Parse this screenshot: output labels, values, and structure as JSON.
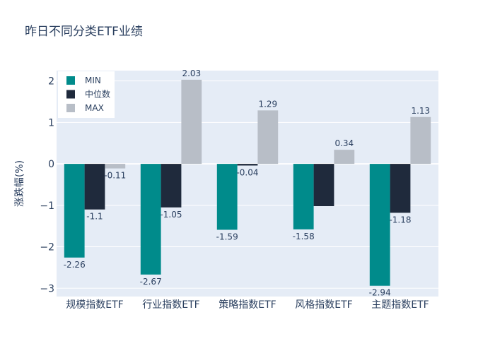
{
  "chart_data": {
    "type": "bar",
    "title": "昨日不同分类ETF业绩",
    "xlabel": "",
    "ylabel": "涨跌幅(%)",
    "ylim": [
      -3.2,
      2.25
    ],
    "yticks": [
      -3,
      -2,
      -1,
      0,
      1,
      2
    ],
    "categories": [
      "规模指数ETF",
      "行业指数ETF",
      "策略指数ETF",
      "风格指数ETF",
      "主题指数ETF"
    ],
    "series": [
      {
        "name": "MIN",
        "color": "#008b8b",
        "values": [
          -2.26,
          -2.67,
          -1.59,
          -1.58,
          -2.94
        ],
        "labels": [
          "-2.26",
          "-2.67",
          "-1.59",
          "-1.58",
          "-2.94"
        ]
      },
      {
        "name": "中位数",
        "color": "#1f2a3c",
        "values": [
          -1.1,
          -1.05,
          -0.04,
          -1.02,
          -1.18
        ],
        "labels": [
          "-1.1",
          "-1.05",
          "-0.04",
          "",
          "-1.18"
        ]
      },
      {
        "name": "MAX",
        "color": "#b8bec7",
        "values": [
          -0.11,
          2.03,
          1.29,
          0.34,
          1.13
        ],
        "labels": [
          "-0.11",
          "2.03",
          "1.29",
          "0.34",
          "1.13"
        ]
      }
    ],
    "legend_position": "top-left",
    "grid": true,
    "colors": {
      "plot_bg": "#e5ecf6",
      "grid": "#ffffff",
      "text": "#2a3f5f"
    }
  }
}
